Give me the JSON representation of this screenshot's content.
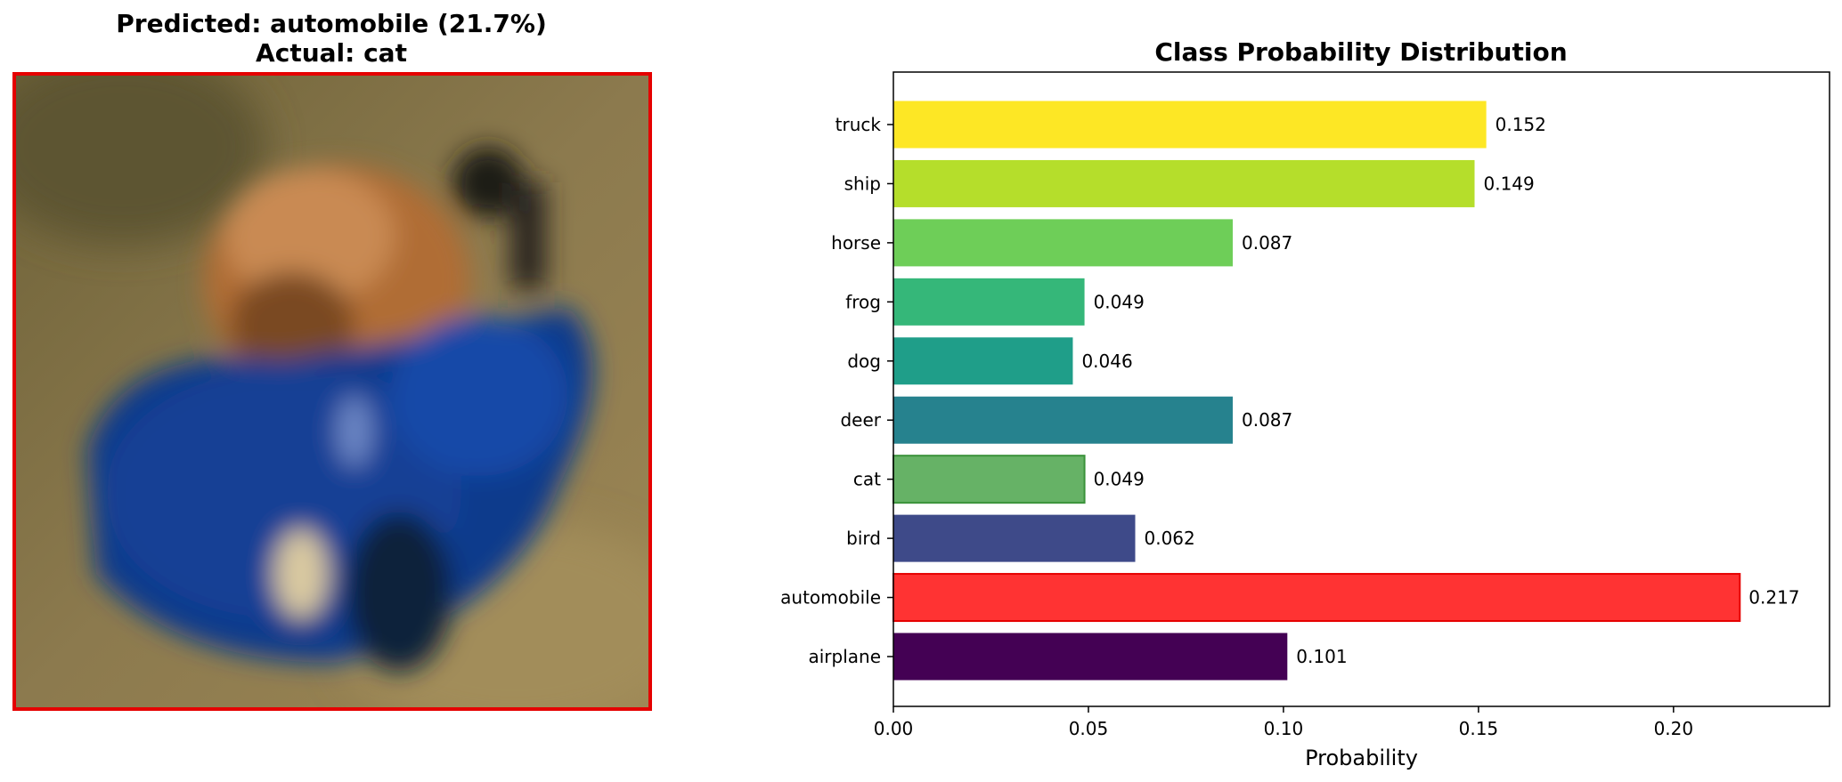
{
  "image_panel": {
    "title_line1": "Predicted: automobile (21.7%)",
    "title_line2": "Actual: cat",
    "frame_color": "#e50000",
    "description_icon": "cat-in-toy-car-photo"
  },
  "chart_data": {
    "type": "bar",
    "orientation": "horizontal",
    "title": "Class Probability Distribution",
    "xlabel": "Probability",
    "ylabel": "",
    "xlim": [
      0,
      0.24
    ],
    "xticks": [
      0.0,
      0.05,
      0.1,
      0.15,
      0.2
    ],
    "xtick_labels": [
      "0.00",
      "0.05",
      "0.10",
      "0.15",
      "0.20"
    ],
    "grid": false,
    "categories": [
      "airplane",
      "automobile",
      "bird",
      "cat",
      "deer",
      "dog",
      "frog",
      "horse",
      "ship",
      "truck"
    ],
    "values": [
      0.101,
      0.217,
      0.062,
      0.049,
      0.087,
      0.046,
      0.049,
      0.087,
      0.149,
      0.152
    ],
    "value_labels": [
      "0.101",
      "0.217",
      "0.062",
      "0.049",
      "0.087",
      "0.046",
      "0.049",
      "0.087",
      "0.149",
      "0.152"
    ],
    "colors": [
      "#440154",
      "#ff3333",
      "#3e4a89",
      "#66b266",
      "#26828e",
      "#1f9e89",
      "#35b779",
      "#6ece58",
      "#b5de2b",
      "#fde725"
    ],
    "edge_colors": [
      "none",
      "#e50000",
      "none",
      "#3a923a",
      "none",
      "none",
      "none",
      "none",
      "none",
      "none"
    ],
    "highlights": {
      "predicted": "automobile",
      "actual": "cat"
    }
  }
}
